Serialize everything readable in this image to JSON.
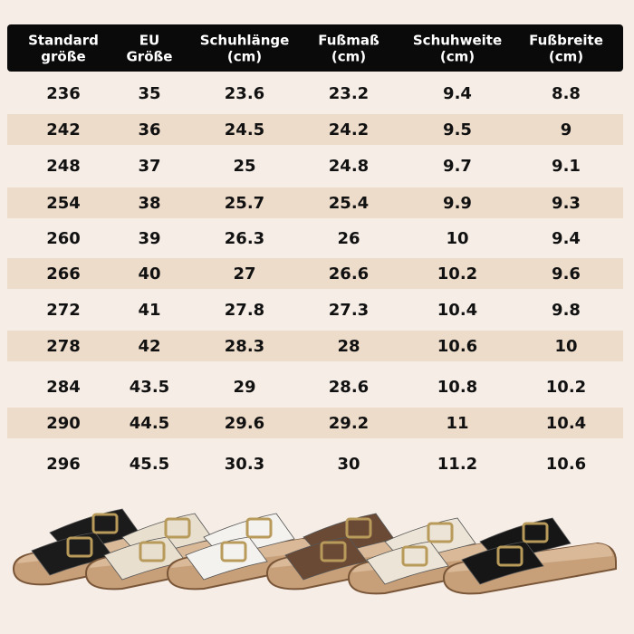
{
  "table": {
    "headers": [
      [
        "Standard",
        "größe"
      ],
      [
        "EU",
        "Größe"
      ],
      [
        "Schuhlänge",
        "(cm)"
      ],
      [
        "Fußmaß",
        "(cm)"
      ],
      [
        "Schuhweite",
        "(cm)"
      ],
      [
        "Fußbreite",
        "(cm)"
      ]
    ],
    "rows": [
      [
        236,
        35,
        23.6,
        23.2,
        9.4,
        8.8
      ],
      [
        242,
        36,
        24.5,
        24.2,
        9.5,
        9
      ],
      [
        248,
        37,
        25,
        24.8,
        9.7,
        9.1
      ],
      [
        254,
        38,
        25.7,
        25.4,
        9.9,
        9.3
      ],
      [
        260,
        39,
        26.3,
        26,
        10,
        9.4
      ],
      [
        266,
        40,
        27,
        26.6,
        10.2,
        9.6
      ],
      [
        272,
        41,
        27.8,
        27.3,
        10.4,
        9.8
      ],
      [
        278,
        42,
        28.3,
        28,
        10.6,
        10
      ],
      [
        284,
        43.5,
        29,
        28.6,
        10.8,
        10.2
      ],
      [
        290,
        44.5,
        29.6,
        29.2,
        11,
        10.4
      ],
      [
        296,
        45.5,
        30.3,
        30,
        11.2,
        10.6
      ]
    ]
  }
}
